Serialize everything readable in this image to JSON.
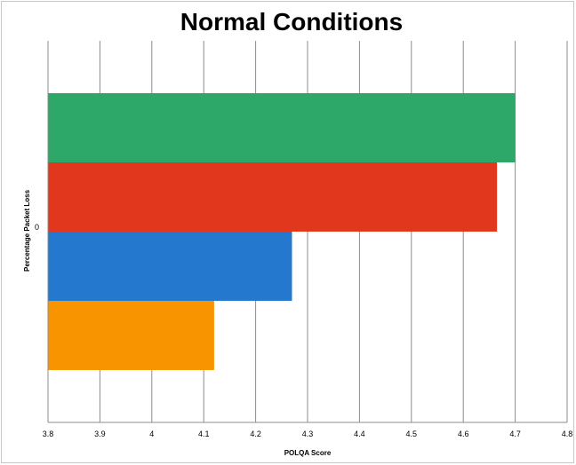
{
  "chart_data": {
    "type": "bar",
    "orientation": "horizontal",
    "title": "Normal Conditions",
    "xlabel": "POLQA Score",
    "ylabel": "Percentage Packet Loss",
    "categories": [
      "0"
    ],
    "xlim": [
      3.8,
      4.8
    ],
    "x_ticks": [
      "3.8",
      "3.9",
      "4",
      "4.1",
      "4.2",
      "4.3",
      "4.4",
      "4.5",
      "4.6",
      "4.7",
      "4.8"
    ],
    "grid": "vertical",
    "legend": "none",
    "series": [
      {
        "values": [
          4.7
        ],
        "color": "#2ea869"
      },
      {
        "values": [
          4.665
        ],
        "color": "#e0371d"
      },
      {
        "values": [
          4.27
        ],
        "color": "#2479cf"
      },
      {
        "values": [
          4.12
        ],
        "color": "#f79400"
      }
    ]
  }
}
